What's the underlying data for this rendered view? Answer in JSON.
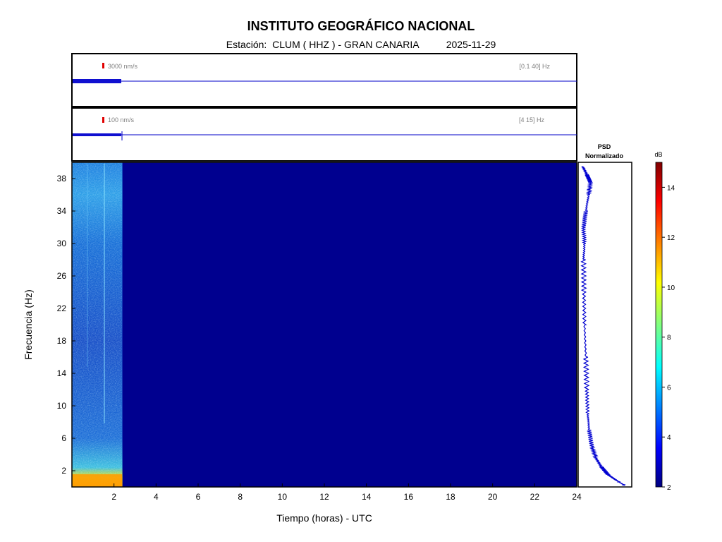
{
  "header": {
    "title": "INSTITUTO GEOGRÁFICO NACIONAL",
    "station_prefix": "Estación:  CLUM ( HHZ ) - GRAN CANARIA",
    "date": "2025-11-29"
  },
  "chart_data": [
    {
      "type": "line",
      "panel": "waveform-broadband",
      "scale_label": "3000 nm/s",
      "filter_label": "[0.1 40] Hz",
      "data_end_hours": 2.4,
      "xlim": [
        0,
        24
      ]
    },
    {
      "type": "line",
      "panel": "waveform-filtered",
      "scale_label": "100 nm/s",
      "filter_label": "[4 15] Hz",
      "data_end_hours": 2.4,
      "xlim": [
        0,
        24
      ]
    },
    {
      "type": "heatmap",
      "panel": "spectrogram",
      "xlabel": "Tiempo (horas) - UTC",
      "ylabel": "Frecuencia  (Hz)",
      "xlim": [
        0,
        24
      ],
      "ylim": [
        0,
        40
      ],
      "x_ticks": [
        2,
        4,
        6,
        8,
        10,
        12,
        14,
        16,
        18,
        20,
        22,
        24
      ],
      "y_ticks": [
        2,
        6,
        10,
        14,
        18,
        22,
        26,
        30,
        34,
        38
      ],
      "data_end_hours": 2.4,
      "background_db": 2
    },
    {
      "type": "line",
      "panel": "psd",
      "title_line1": "PSD",
      "title_line2": "Normalizado",
      "ylim": [
        0,
        40
      ],
      "psd": [
        [
          0.2,
          0.95
        ],
        [
          0.8,
          0.78
        ],
        [
          1.5,
          0.6
        ],
        [
          2.5,
          0.45
        ],
        [
          3.5,
          0.34
        ],
        [
          5,
          0.25
        ],
        [
          7,
          0.19
        ],
        [
          9,
          0.16
        ],
        [
          12,
          0.14
        ],
        [
          16,
          0.12
        ],
        [
          20,
          0.09
        ],
        [
          24,
          0.08
        ],
        [
          28,
          0.07
        ],
        [
          30,
          0.09
        ],
        [
          32,
          0.07
        ],
        [
          34,
          0.12
        ],
        [
          36,
          0.18
        ],
        [
          37.5,
          0.22
        ],
        [
          38.5,
          0.14
        ],
        [
          39.5,
          0.05
        ]
      ]
    },
    {
      "type": "colorbar",
      "unit": "dB",
      "range": [
        2,
        15
      ],
      "ticks": [
        2,
        4,
        6,
        8,
        10,
        12,
        14
      ]
    }
  ]
}
